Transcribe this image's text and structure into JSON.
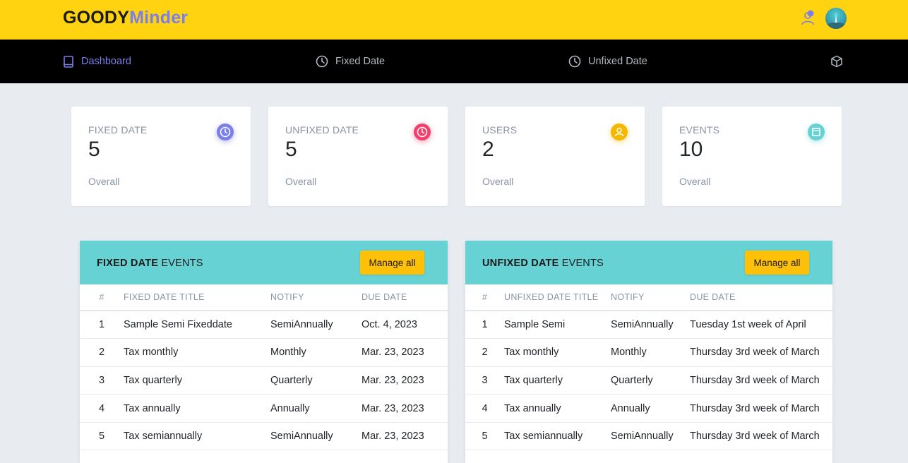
{
  "brand": {
    "part1": "GOODY",
    "part2": "Minder"
  },
  "nav": {
    "dashboard": "Dashboard",
    "fixed_date": "Fixed Date",
    "unfixed_date": "Unfixed Date"
  },
  "stats": [
    {
      "title": "FIXED DATE",
      "value": "5",
      "foot": "Overall",
      "icon": "clock-icon",
      "color": "#7b7fe8"
    },
    {
      "title": "UNFIXED DATE",
      "value": "5",
      "foot": "Overall",
      "icon": "clock-icon",
      "color": "#f2426b"
    },
    {
      "title": "USERS",
      "value": "2",
      "foot": "Overall",
      "icon": "user-icon",
      "color": "#f5b800"
    },
    {
      "title": "EVENTS",
      "value": "10",
      "foot": "Overall",
      "icon": "calendar-icon",
      "color": "#67d2d4"
    }
  ],
  "fixed_panel": {
    "title_bold": "FIXED DATE",
    "title_rest": " EVENTS",
    "manage_label": "Manage all",
    "columns": [
      "#",
      "FIXED DATE TITLE",
      "NOTIFY",
      "DUE DATE"
    ],
    "rows": [
      [
        "1",
        "Sample Semi Fixeddate",
        "SemiAnnually",
        "Oct. 4, 2023"
      ],
      [
        "2",
        "Tax monthly",
        "Monthly",
        "Mar. 23, 2023"
      ],
      [
        "3",
        "Tax quarterly",
        "Quarterly",
        "Mar. 23, 2023"
      ],
      [
        "4",
        "Tax annually",
        "Annually",
        "Mar. 23, 2023"
      ],
      [
        "5",
        "Tax semiannually",
        "SemiAnnually",
        "Mar. 23, 2023"
      ]
    ]
  },
  "unfixed_panel": {
    "title_bold": "UNFIXED DATE",
    "title_rest": " EVENTS",
    "manage_label": "Manage all",
    "columns": [
      "#",
      "UNFIXED DATE TITLE",
      "NOTIFY",
      "DUE DATE"
    ],
    "rows": [
      [
        "1",
        "Sample Semi",
        "SemiAnnually",
        "Tuesday 1st week of April"
      ],
      [
        "2",
        "Tax monthly",
        "Monthly",
        "Thursday 3rd week of March"
      ],
      [
        "3",
        "Tax quarterly",
        "Quarterly",
        "Thursday 3rd week of March"
      ],
      [
        "4",
        "Tax annually",
        "Annually",
        "Thursday 3rd week of March"
      ],
      [
        "5",
        "Tax semiannually",
        "SemiAnnually",
        "Thursday 3rd week of March"
      ]
    ]
  },
  "colors": {
    "topbar": "#ffd30f",
    "accent": "#7b7fe8",
    "panel_head": "#67d2d4",
    "button": "#ffc107"
  }
}
